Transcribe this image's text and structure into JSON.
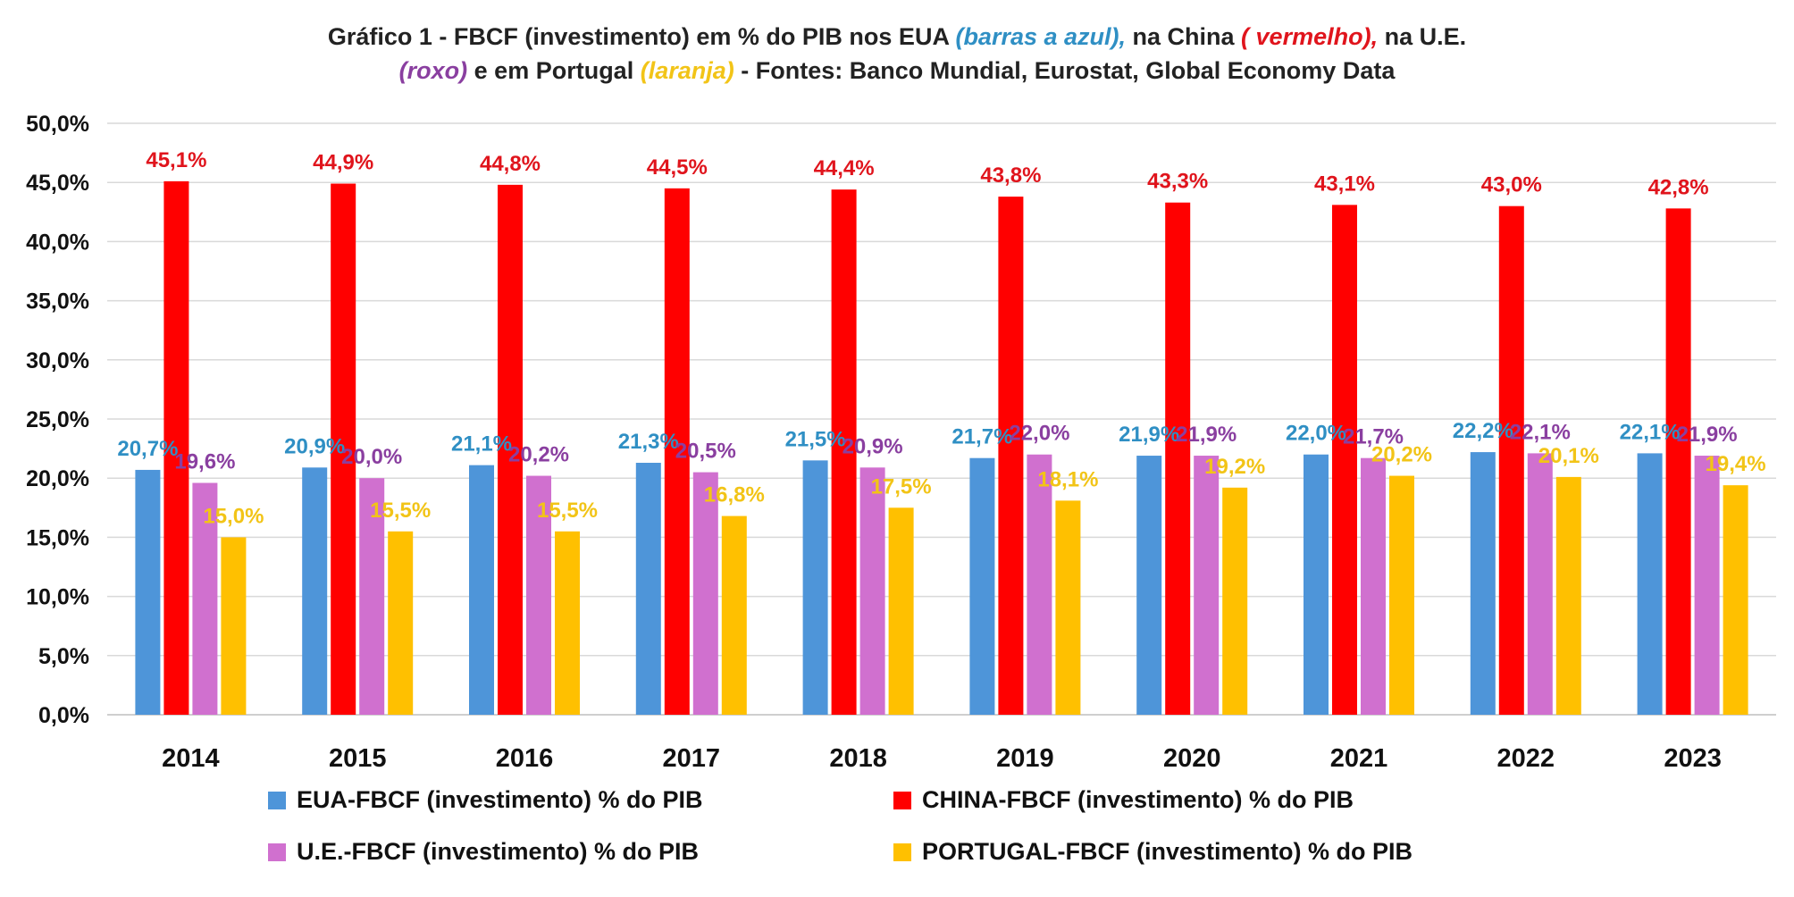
{
  "title": {
    "line1_a": "Gráfico 1 - FBCF (investimento) em % do PIB nos EUA ",
    "line1_b": "(barras a azul),",
    "line1_c": " na China ",
    "line1_d": "( vermelho),",
    "line1_e": " na U.E.",
    "line2_a": "(roxo)",
    "line2_b": " e em Portugal ",
    "line2_c": "(laranja)",
    "line2_d": " - Fontes: Banco Mundial, Eurostat, Global Economy Data"
  },
  "chart_data": {
    "type": "bar",
    "categories": [
      "2014",
      "2015",
      "2016",
      "2017",
      "2018",
      "2019",
      "2020",
      "2021",
      "2022",
      "2023"
    ],
    "series": [
      {
        "name": "EUA-FBCF (investimento) % do PIB",
        "color": "#4e95d9",
        "label_color": "#2f8fc4",
        "values": [
          20.7,
          20.9,
          21.1,
          21.3,
          21.5,
          21.7,
          21.9,
          22.0,
          22.2,
          22.1
        ],
        "labels": [
          "20,7%",
          "20,9%",
          "21,1%",
          "21,3%",
          "21,5%",
          "21,7%",
          "21,9%",
          "22,0%",
          "22,2%",
          "22,1%"
        ]
      },
      {
        "name": "CHINA-FBCF (investimento) % do PIB",
        "color": "#ff0000",
        "label_color": "#e0141c",
        "values": [
          45.1,
          44.9,
          44.8,
          44.5,
          44.4,
          43.8,
          43.3,
          43.1,
          43.0,
          42.8
        ],
        "labels": [
          "45,1%",
          "44,9%",
          "44,8%",
          "44,5%",
          "44,4%",
          "43,8%",
          "43,3%",
          "43,1%",
          "43,0%",
          "42,8%"
        ]
      },
      {
        "name": "U.E.-FBCF (investimento) % do PIB",
        "color": "#d070cf",
        "label_color": "#8a3fa0",
        "values": [
          19.6,
          20.0,
          20.2,
          20.5,
          20.9,
          22.0,
          21.9,
          21.7,
          22.1,
          21.9
        ],
        "labels": [
          "19,6%",
          "20,0%",
          "20,2%",
          "20,5%",
          "20,9%",
          "22,0%",
          "21,9%",
          "21,7%",
          "22,1%",
          "21,9%"
        ]
      },
      {
        "name": "PORTUGAL-FBCF (investimento) % do PIB",
        "color": "#ffc000",
        "label_color": "#f2c417",
        "values": [
          15.0,
          15.5,
          15.5,
          16.8,
          17.5,
          18.1,
          19.2,
          20.2,
          20.1,
          19.4
        ],
        "labels": [
          "15,0%",
          "15,5%",
          "15,5%",
          "16,8%",
          "17,5%",
          "18,1%",
          "19,2%",
          "20,2%",
          "20,1%",
          "19,4%"
        ]
      }
    ],
    "ylim": [
      0,
      50
    ],
    "y_ticks": [
      "0,0%",
      "5,0%",
      "10,0%",
      "15,0%",
      "20,0%",
      "25,0%",
      "30,0%",
      "35,0%",
      "40,0%",
      "45,0%",
      "50,0%"
    ],
    "grid": true,
    "legend_position": "bottom"
  }
}
